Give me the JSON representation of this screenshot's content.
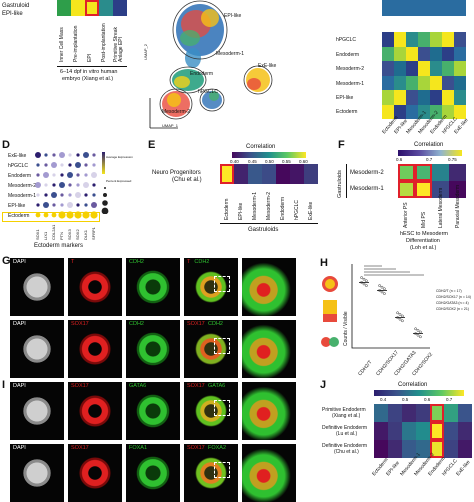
{
  "panelA": {
    "rows": [
      "Gastruloid",
      "EPI-like"
    ],
    "columns": [
      "Inner Cell Mass",
      "Pre-implantation",
      "EPI",
      "Post-implantation",
      "Primitive Streak Anlage EPI"
    ],
    "footer_line1": "6–14 dpf in vitro human",
    "footer_line2": "embryo (Xiang et al.)",
    "colors": {
      "green": "#2e9e4a",
      "yellow": "#f5e61d",
      "blue": "#2c3e87",
      "teal": "#2a8c8c"
    }
  },
  "panelB": {
    "clusters": [
      "EPI-like",
      "Mesoderm-1",
      "Endoderm",
      "hPGCLC",
      "ExE-like",
      "Mesoderm-2"
    ],
    "xaxis": "UMAP_1",
    "yaxis": "UMAP_2"
  },
  "panelC": {
    "rows": [
      "hPGCLC",
      "Endoderm",
      "Mesoderm-2",
      "Mesoderm-1",
      "EPI-like",
      "Ectoderm"
    ],
    "columns": [
      "Ectoderm",
      "EPI-like",
      "Mesoderm-1",
      "Mesoderm-2",
      "Endoderm",
      "hPGCLC",
      "ExE-like"
    ]
  },
  "panelD": {
    "letter": "D",
    "rows": [
      "ExE-like",
      "hPGCLC",
      "Endoderm",
      "Mesoderm-2",
      "Mesoderm-1",
      "EPI-like",
      "Ectoderm"
    ],
    "genes": [
      "SOX1",
      "LIX1",
      "COL2A1",
      "PTN",
      "SOX3",
      "SOX2",
      "DLK1",
      "SFRP1"
    ],
    "xlabel": "Ectoderm markers",
    "legend_expr": "Average Expression",
    "legend_pct": "Percent Expressed"
  },
  "panelE": {
    "letter": "E",
    "title": "Correlation",
    "ticks": [
      "0.40",
      "0.45",
      "0.50",
      "0.55",
      "0.60"
    ],
    "row_label_1": "Neuro Progenitors",
    "row_label_2": "(Chu et al.)",
    "columns": [
      "Ectoderm",
      "EPI-like",
      "Mesoderm-1",
      "Mesoderm-2",
      "Endoderm",
      "hPGCLC",
      "ExE-like"
    ],
    "xlabel": "Gastruloids"
  },
  "panelF": {
    "letter": "F",
    "title": "Correlation",
    "ticks": [
      "0.6",
      "0.7",
      "0.75"
    ],
    "group": "Gastruloids",
    "rows": [
      "Mesoderm-2",
      "Mesoderm-1"
    ],
    "columns": [
      "Anterior PS",
      "Mid PS",
      "Lateral Mesoderm",
      "Paraxial Mesoderm"
    ],
    "xlabel_1": "hESC to Mesoderm",
    "xlabel_2": "Differentiation",
    "xlabel_3": "(Loh et al.)"
  },
  "panelG": {
    "letter": "G",
    "row1": {
      "dapi": "DAPI",
      "c1": "T",
      "c2": "CDH2",
      "m1": "T",
      "m2": "CDH2"
    },
    "row2": {
      "dapi": "DAPI",
      "c1": "SOX17",
      "c2": "CDH2",
      "m1": "SOX17",
      "m2": "CDH2"
    }
  },
  "panelH": {
    "letter": "H",
    "ylabel": "Counts / Visible",
    "categories": [
      "CDH2/T",
      "CDH2/SOX17",
      "CDH2/GATA3",
      "CDH2/SOX2"
    ],
    "values": [
      0.82,
      0.72,
      0.38,
      0.18
    ],
    "ylim": [
      0,
      1
    ],
    "legend": [
      "CDH2/T (n = 17)",
      "CDH2/SOX17 (n = 14)",
      "CDH2/GATA3 (n = 4)",
      "CDH2/SOX2 (n = 21)"
    ]
  },
  "panelI": {
    "letter": "I",
    "row1": {
      "dapi": "DAPI",
      "c1": "SOX17",
      "c2": "GATA6",
      "m1": "SOX17",
      "m2": "GATA6"
    },
    "row2": {
      "dapi": "DAPI",
      "c1": "SOX17",
      "c2": "FOXA1",
      "m1": "SOX17",
      "m2": "FOXA2"
    }
  },
  "panelJ": {
    "letter": "J",
    "title": "Correlation",
    "ticks": [
      "0.4",
      "0.5",
      "0.6",
      "0.7"
    ],
    "rows": [
      {
        "l1": "Primitive Endoderm",
        "l2": "(Xiang et al.)"
      },
      {
        "l1": "Definitive Endoderm",
        "l2": "(Lu et al.)"
      },
      {
        "l1": "Definitive Endoderm",
        "l2": "(Chu et al.)"
      }
    ],
    "columns": [
      "Ectoderm",
      "EPI-like",
      "Mesoderm-1",
      "Mesoderm-2",
      "Endoderm",
      "hPGCLC",
      "ExE-like"
    ]
  },
  "chart_data": [
    {
      "type": "heatmap",
      "title": "Correlation",
      "rows": [
        "Neuro Progenitors (Chu et al.)"
      ],
      "columns": [
        "Ectoderm",
        "EPI-like",
        "Mesoderm-1",
        "Mesoderm-2",
        "Endoderm",
        "hPGCLC",
        "ExE-like"
      ],
      "values": [
        [
          0.62,
          0.42,
          0.46,
          0.45,
          0.4,
          0.41,
          0.44
        ]
      ]
    },
    {
      "type": "heatmap",
      "title": "Correlation",
      "rows": [
        "Mesoderm-2",
        "Mesoderm-1"
      ],
      "columns": [
        "Anterior PS",
        "Mid PS",
        "Lateral Mesoderm",
        "Paraxial Mesoderm"
      ],
      "values": [
        [
          0.72,
          0.7,
          0.66,
          0.6
        ],
        [
          0.74,
          0.76,
          0.62,
          0.58
        ]
      ]
    },
    {
      "type": "heatmap",
      "title": "Correlation",
      "rows": [
        "Primitive Endoderm (Xiang et al.)",
        "Definitive Endoderm (Lu et al.)",
        "Definitive Endoderm (Chu et al.)"
      ],
      "columns": [
        "Ectoderm",
        "EPI-like",
        "Mesoderm-1",
        "Mesoderm-2",
        "Endoderm",
        "hPGCLC",
        "ExE-like"
      ],
      "values": [
        [
          0.5,
          0.45,
          0.42,
          0.44,
          0.66,
          0.58,
          0.47
        ],
        [
          0.4,
          0.44,
          0.52,
          0.55,
          0.73,
          0.46,
          0.42
        ],
        [
          0.38,
          0.42,
          0.48,
          0.5,
          0.72,
          0.45,
          0.4
        ]
      ]
    }
  ]
}
